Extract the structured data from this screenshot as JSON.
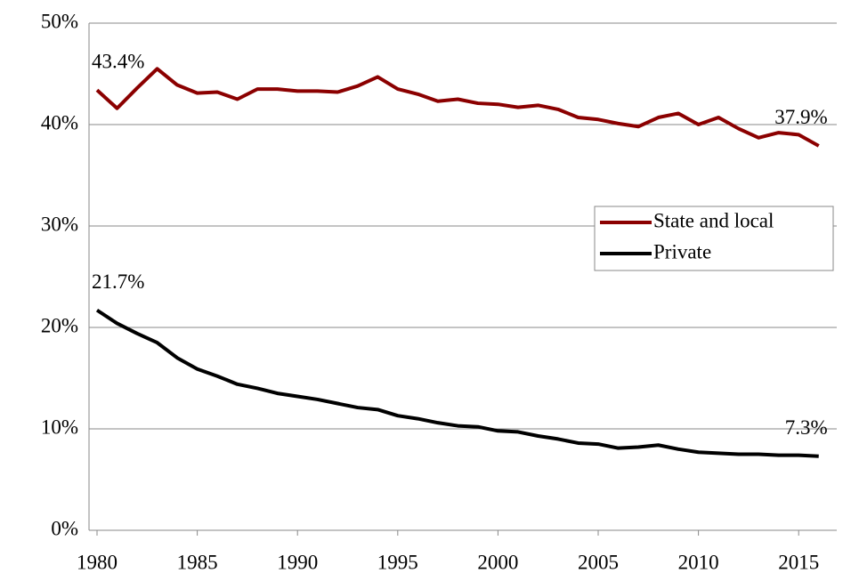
{
  "chart_data": {
    "type": "line",
    "x": [
      1980,
      1981,
      1982,
      1983,
      1984,
      1985,
      1986,
      1987,
      1988,
      1989,
      1990,
      1991,
      1992,
      1993,
      1994,
      1995,
      1996,
      1997,
      1998,
      1999,
      2000,
      2001,
      2002,
      2003,
      2004,
      2005,
      2006,
      2007,
      2008,
      2009,
      2010,
      2011,
      2012,
      2013,
      2014,
      2015,
      2016
    ],
    "series": [
      {
        "name": "State and local",
        "color": "#8b0000",
        "values": [
          43.4,
          41.6,
          43.6,
          45.5,
          43.9,
          43.1,
          43.2,
          42.5,
          43.5,
          43.5,
          43.3,
          43.3,
          43.2,
          43.8,
          44.7,
          43.5,
          43.0,
          42.3,
          42.5,
          42.1,
          42.0,
          41.7,
          41.9,
          41.5,
          40.7,
          40.5,
          40.1,
          39.8,
          40.7,
          41.1,
          40.0,
          40.7,
          39.6,
          38.7,
          39.2,
          39.0,
          37.9
        ],
        "value_labels": [
          "43.4%",
          null,
          null,
          null,
          null,
          null,
          null,
          null,
          null,
          null,
          null,
          null,
          null,
          null,
          null,
          null,
          null,
          null,
          null,
          null,
          null,
          null,
          null,
          null,
          null,
          null,
          null,
          null,
          null,
          null,
          null,
          null,
          null,
          null,
          null,
          null,
          "37.9%"
        ]
      },
      {
        "name": "Private",
        "color": "#000000",
        "values": [
          21.7,
          20.4,
          19.4,
          18.5,
          17.0,
          15.9,
          15.2,
          14.4,
          14.0,
          13.5,
          13.2,
          12.9,
          12.5,
          12.1,
          11.9,
          11.3,
          11.0,
          10.6,
          10.3,
          10.2,
          9.8,
          9.7,
          9.3,
          9.0,
          8.6,
          8.5,
          8.1,
          8.2,
          8.4,
          8.0,
          7.7,
          7.6,
          7.5,
          7.5,
          7.4,
          7.4,
          7.3
        ],
        "value_labels": [
          "21.7%",
          null,
          null,
          null,
          null,
          null,
          null,
          null,
          null,
          null,
          null,
          null,
          null,
          null,
          null,
          null,
          null,
          null,
          null,
          null,
          null,
          null,
          null,
          null,
          null,
          null,
          null,
          null,
          null,
          null,
          null,
          null,
          null,
          null,
          null,
          null,
          "7.3%"
        ]
      }
    ],
    "xlim": [
      1979.6,
      2016.9
    ],
    "xticks": [
      1980,
      1985,
      1990,
      1995,
      2000,
      2005,
      2010,
      2015
    ],
    "ylim": [
      0,
      50
    ],
    "yticks": [
      {
        "value": 0,
        "label": "0%"
      },
      {
        "value": 10,
        "label": "10%"
      },
      {
        "value": 20,
        "label": "20%"
      },
      {
        "value": 30,
        "label": "30%"
      },
      {
        "value": 40,
        "label": "40%"
      },
      {
        "value": 50,
        "label": "50%"
      }
    ],
    "grid": true,
    "legend": "center right"
  }
}
